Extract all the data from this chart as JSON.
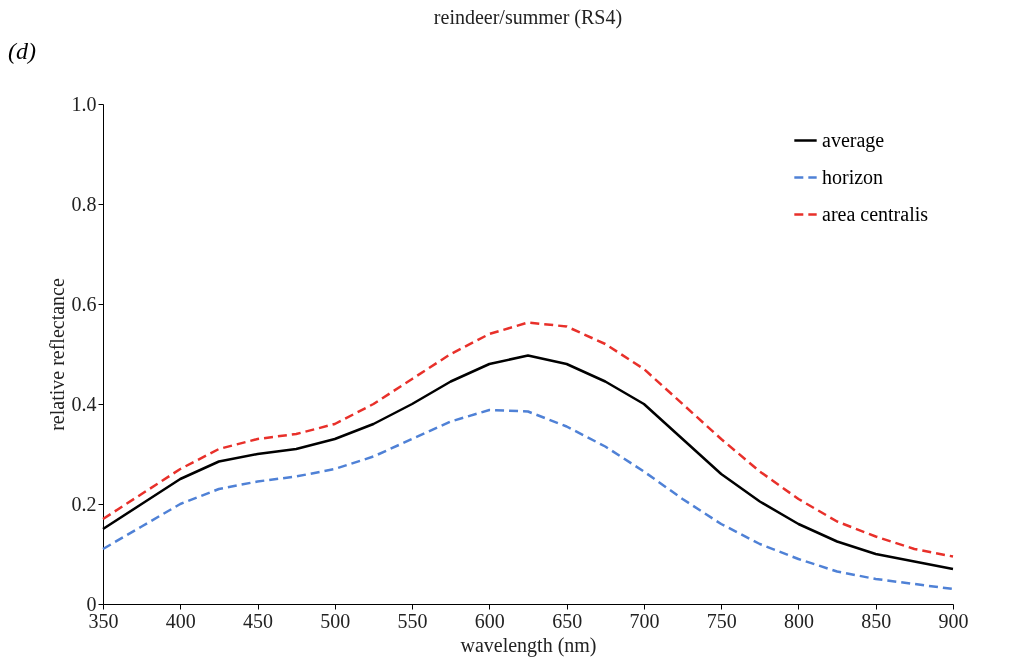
{
  "chart_data": {
    "type": "line",
    "title": "reindeer/summer (RS4)",
    "xlabel": "wavelength (nm)",
    "ylabel": "relative reflectance",
    "annotations": [
      "(d)"
    ],
    "x": [
      350,
      375,
      400,
      425,
      450,
      475,
      500,
      525,
      550,
      575,
      600,
      625,
      650,
      675,
      700,
      725,
      750,
      775,
      800,
      825,
      850,
      875,
      900
    ],
    "series": [
      {
        "name": "average",
        "color": "#000000",
        "line_style": "solid",
        "values": [
          0.15,
          0.2,
          0.25,
          0.285,
          0.3,
          0.31,
          0.33,
          0.36,
          0.4,
          0.445,
          0.48,
          0.497,
          0.48,
          0.445,
          0.4,
          0.33,
          0.26,
          0.205,
          0.16,
          0.125,
          0.1,
          0.085,
          0.07
        ]
      },
      {
        "name": "horizon",
        "color": "#4f81d6",
        "line_style": "dashed",
        "values": [
          0.11,
          0.155,
          0.2,
          0.23,
          0.245,
          0.255,
          0.27,
          0.295,
          0.33,
          0.365,
          0.388,
          0.385,
          0.355,
          0.315,
          0.265,
          0.21,
          0.16,
          0.12,
          0.09,
          0.065,
          0.05,
          0.04,
          0.03
        ]
      },
      {
        "name": "area centralis",
        "color": "#e8302a",
        "line_style": "dashed",
        "values": [
          0.17,
          0.22,
          0.27,
          0.31,
          0.33,
          0.34,
          0.36,
          0.4,
          0.45,
          0.5,
          0.54,
          0.563,
          0.555,
          0.52,
          0.47,
          0.4,
          0.33,
          0.265,
          0.21,
          0.165,
          0.135,
          0.11,
          0.095
        ]
      }
    ],
    "xlim": [
      350,
      900
    ],
    "xticks": [
      350,
      400,
      450,
      500,
      550,
      600,
      650,
      700,
      750,
      800,
      850,
      900
    ],
    "ylim": [
      0,
      1
    ],
    "yticks": [
      0,
      0.2,
      0.4,
      0.6,
      0.8,
      {
        "value": 1,
        "label": "1.0"
      }
    ],
    "grid": false,
    "legend": "top right",
    "marker": "none"
  }
}
